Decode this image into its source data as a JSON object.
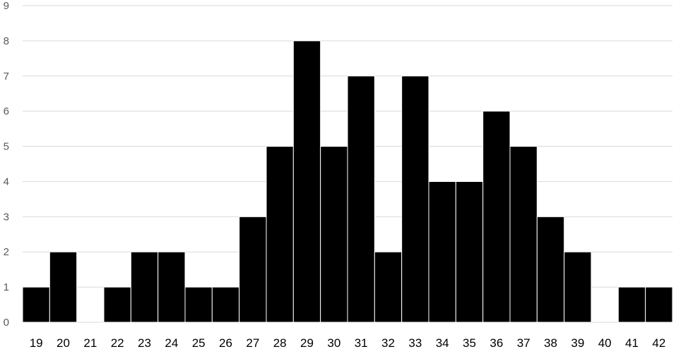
{
  "chart_data": {
    "type": "bar",
    "title": "",
    "xlabel": "",
    "ylabel": "",
    "categories": [
      "19",
      "20",
      "21",
      "22",
      "23",
      "24",
      "25",
      "26",
      "27",
      "28",
      "29",
      "30",
      "31",
      "32",
      "33",
      "34",
      "35",
      "36",
      "37",
      "38",
      "39",
      "40",
      "41",
      "42"
    ],
    "values": [
      1,
      2,
      0,
      1,
      2,
      2,
      1,
      1,
      3,
      5,
      8,
      5,
      7,
      2,
      7,
      4,
      4,
      6,
      5,
      3,
      2,
      0,
      1,
      1
    ],
    "ylim": [
      0,
      9
    ],
    "yticks": [
      0,
      1,
      2,
      3,
      4,
      5,
      6,
      7,
      8,
      9
    ],
    "grid": true,
    "legend": "none",
    "bar_color": "#000000",
    "gridline_color": "#d9d9d9"
  }
}
